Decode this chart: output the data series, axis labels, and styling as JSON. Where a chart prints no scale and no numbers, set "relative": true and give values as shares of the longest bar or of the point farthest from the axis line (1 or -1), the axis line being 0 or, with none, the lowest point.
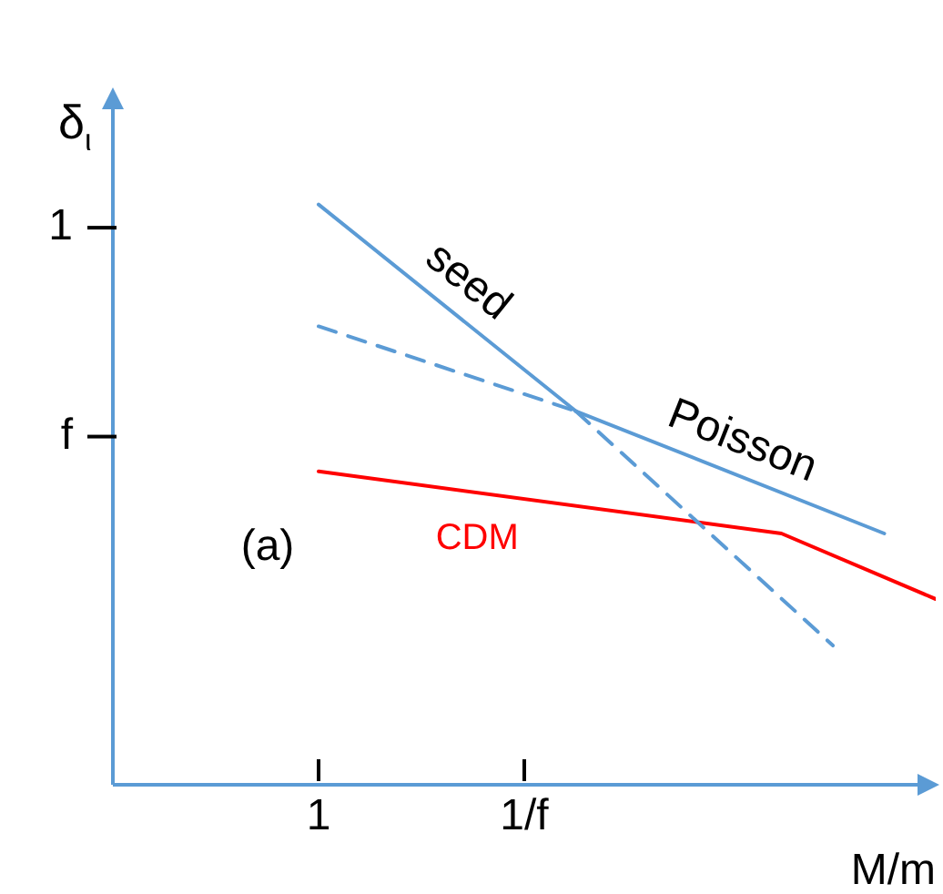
{
  "chart_data": {
    "type": "line",
    "relative": true,
    "xlabel": "M/m",
    "ylabel": "δ$_{ι}$",
    "categories": [
      null,
      null,
      null,
      null,
      "1",
      null,
      null,
      null,
      "1/f",
      null,
      null,
      null,
      null,
      null,
      null,
      null,
      null
    ],
    "grid": false,
    "legend": false,
    "marker": "none",
    "annotations": [
      "(a)",
      "1",
      "f"
    ],
    "series": [
      {
        "name": "seed",
        "color": "#5b9bd5",
        "line_style": [
          "solid",
          "dashed"
        ],
        "values": [
          null,
          null,
          null,
          null,
          1.0,
          null,
          null,
          null,
          null,
          0.644,
          null,
          null,
          null,
          null,
          0.24,
          null,
          null
        ]
      },
      {
        "name": "Poisson",
        "color": "#5b9bd5",
        "line_style": [
          "dashed",
          "solid"
        ],
        "values": [
          null,
          null,
          null,
          null,
          0.79,
          null,
          null,
          null,
          null,
          0.644,
          null,
          null,
          null,
          null,
          null,
          0.433,
          null
        ]
      },
      {
        "name": "CDM",
        "color": "#ff0000",
        "line_style": "solid",
        "values": [
          null,
          null,
          null,
          null,
          0.54,
          null,
          null,
          null,
          null,
          null,
          null,
          null,
          null,
          0.433,
          null,
          null,
          0.32
        ]
      }
    ]
  }
}
